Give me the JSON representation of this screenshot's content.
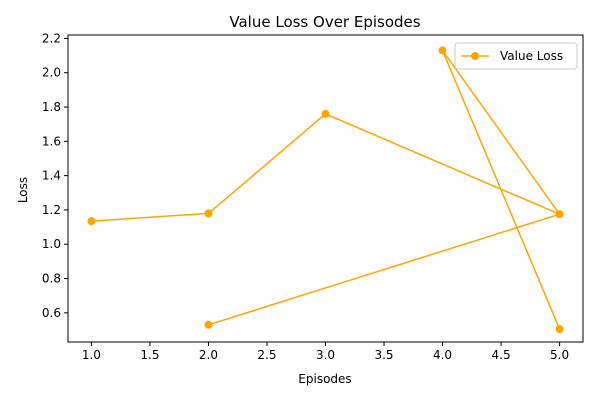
{
  "chart_data": {
    "type": "line",
    "title": "Value Loss Over Episodes",
    "xlabel": "Episodes",
    "ylabel": "Loss",
    "xlim": [
      0.8,
      5.2
    ],
    "ylim": [
      0.43,
      2.22
    ],
    "xticks": [
      1.0,
      1.5,
      2.0,
      2.5,
      3.0,
      3.5,
      4.0,
      4.5,
      5.0
    ],
    "xtick_labels": [
      "1.0",
      "1.5",
      "2.0",
      "2.5",
      "3.0",
      "3.5",
      "4.0",
      "4.5",
      "5.0"
    ],
    "yticks": [
      0.6,
      0.8,
      1.0,
      1.2,
      1.4,
      1.6,
      1.8,
      2.0,
      2.2
    ],
    "ytick_labels": [
      "0.6",
      "0.8",
      "1.0",
      "1.2",
      "1.4",
      "1.6",
      "1.8",
      "2.0",
      "2.2"
    ],
    "grid": false,
    "legend_position": "top-right",
    "series": [
      {
        "name": "Value Loss",
        "color": "#FFA500",
        "marker": "circle",
        "x": [
          1,
          2,
          3,
          5,
          2,
          5,
          4,
          5
        ],
        "y": [
          1.135,
          1.18,
          1.76,
          1.175,
          0.53,
          1.175,
          2.13,
          0.505
        ]
      }
    ]
  }
}
